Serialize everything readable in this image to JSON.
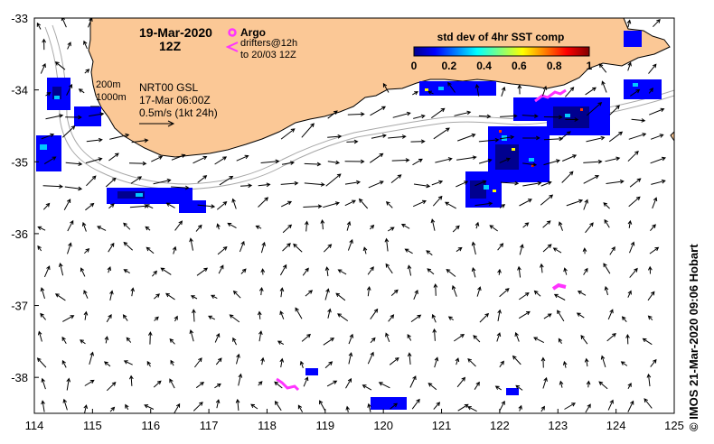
{
  "map": {
    "date": "19-Mar-2020",
    "time": "12Z",
    "legend": {
      "argo_label": "Argo",
      "drifters_line1": "drifters@12h",
      "drifters_line2": "to 20/03 12Z",
      "argo_color": "#ff33ff"
    },
    "colorbar": {
      "title": "std dev of 4hr SST comp",
      "ticks": [
        "0",
        "0.2",
        "0.4",
        "0.6",
        "0.8",
        "1"
      ],
      "range": [
        0,
        1
      ]
    },
    "info": {
      "isobath_200": "200m",
      "isobath_1000": "1000m",
      "product": "NRT00 GSL",
      "product_time": "17-Mar 06:00Z",
      "scale": "0.5m/s (1kt 24h)"
    },
    "axes": {
      "x_ticks": [
        "114",
        "115",
        "116",
        "117",
        "118",
        "119",
        "120",
        "121",
        "122",
        "123",
        "124",
        "125"
      ],
      "y_ticks": [
        "-33",
        "-34",
        "-35",
        "-36",
        "-37",
        "-38"
      ],
      "lon_range": [
        114,
        125
      ],
      "lat_range": [
        -33,
        -38.5
      ]
    },
    "credit": "© IMOS 21-Mar-2020 09:06 Hobart",
    "colors": {
      "land": "#fbc896",
      "argo": "#ff33ff",
      "isobath": "#a8a8a8"
    }
  }
}
